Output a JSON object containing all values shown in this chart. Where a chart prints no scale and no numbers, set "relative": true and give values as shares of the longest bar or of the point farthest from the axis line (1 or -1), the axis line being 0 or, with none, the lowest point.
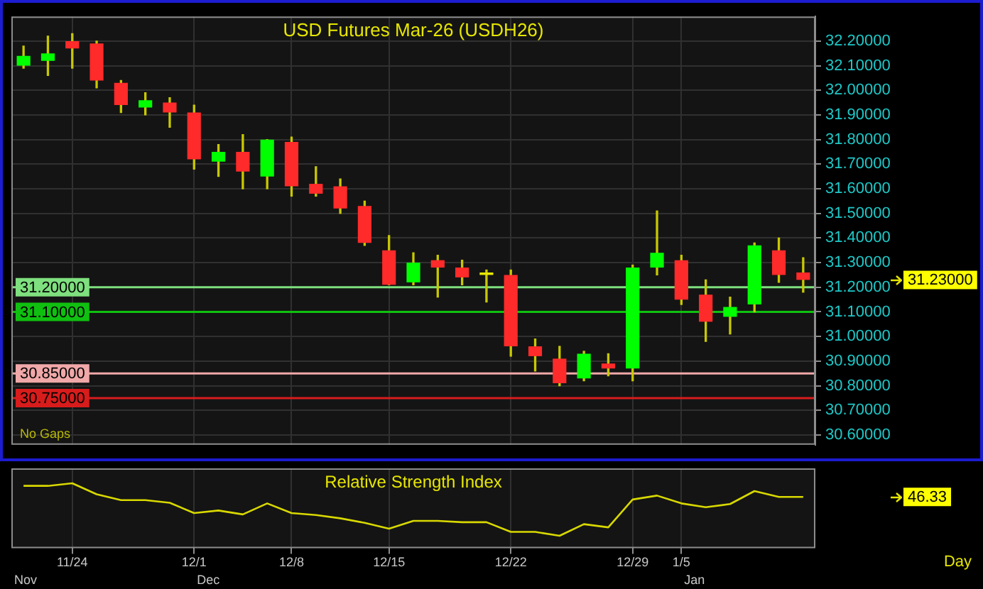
{
  "chart_data": [
    {
      "type": "candlestick",
      "title": "USD Futures Mar-26 (USDH26)",
      "categories": [
        null,
        null,
        null,
        null,
        null,
        null,
        null,
        null,
        null,
        null,
        null,
        null,
        null,
        null,
        null,
        null,
        null,
        null,
        null,
        null,
        null,
        null,
        null,
        null,
        null,
        null,
        null,
        null,
        null,
        null,
        null,
        null,
        null
      ],
      "ohlc": [
        [
          32.1,
          32.18,
          32.09,
          32.14
        ],
        [
          32.12,
          32.22,
          32.06,
          32.15
        ],
        [
          32.2,
          32.23,
          32.09,
          32.17
        ],
        [
          32.19,
          32.2,
          32.01,
          32.04
        ],
        [
          32.03,
          32.04,
          31.91,
          31.94
        ],
        [
          31.93,
          31.99,
          31.9,
          31.96
        ],
        [
          31.95,
          31.97,
          31.85,
          31.91
        ],
        [
          31.91,
          31.94,
          31.68,
          31.72
        ],
        [
          31.71,
          31.78,
          31.65,
          31.75
        ],
        [
          31.75,
          31.82,
          31.6,
          31.67
        ],
        [
          31.65,
          31.8,
          31.6,
          31.8
        ],
        [
          31.79,
          31.81,
          31.57,
          31.61
        ],
        [
          31.62,
          31.69,
          31.57,
          31.58
        ],
        [
          31.61,
          31.64,
          31.5,
          31.52
        ],
        [
          31.53,
          31.55,
          31.37,
          31.38
        ],
        [
          31.35,
          31.41,
          31.21,
          31.21
        ],
        [
          31.22,
          31.34,
          31.21,
          31.3
        ],
        [
          31.31,
          31.33,
          31.16,
          31.28
        ],
        [
          31.28,
          31.31,
          31.21,
          31.24
        ],
        [
          31.26,
          31.27,
          31.14,
          31.25
        ],
        [
          31.25,
          31.27,
          30.92,
          30.96
        ],
        [
          30.96,
          30.99,
          30.86,
          30.92
        ],
        [
          30.91,
          30.96,
          30.8,
          30.81
        ],
        [
          30.83,
          30.94,
          30.82,
          30.93
        ],
        [
          30.89,
          30.93,
          30.84,
          30.87
        ],
        [
          30.87,
          31.29,
          30.82,
          31.28
        ],
        [
          31.28,
          31.51,
          31.25,
          31.34
        ],
        [
          31.31,
          31.33,
          31.13,
          31.15
        ],
        [
          31.17,
          31.23,
          30.98,
          31.06
        ],
        [
          31.08,
          31.16,
          31.01,
          31.12
        ],
        [
          31.13,
          31.38,
          31.1,
          31.37
        ],
        [
          31.35,
          31.4,
          31.22,
          31.25
        ],
        [
          31.26,
          31.32,
          31.18,
          31.23
        ]
      ],
      "colors": [
        "#00ff00",
        "#00ff00",
        "#ff2a2a",
        "#ff2a2a",
        "#ff2a2a",
        "#00ff00",
        "#ff2a2a",
        "#ff2a2a",
        "#00ff00",
        "#ff2a2a",
        "#00ff00",
        "#ff2a2a",
        "#ff2a2a",
        "#ff2a2a",
        "#ff2a2a",
        "#ff2a2a",
        "#00ff00",
        "#ff2a2a",
        "#ff2a2a",
        "#e8e800",
        "#ff2a2a",
        "#ff2a2a",
        "#ff2a2a",
        "#00ff00",
        "#ff2a2a",
        "#00ff00",
        "#00ff00",
        "#ff2a2a",
        "#ff2a2a",
        "#00ff00",
        "#00ff00",
        "#ff2a2a",
        "#ff2a2a"
      ],
      "ylim": [
        30.56,
        32.3
      ],
      "yticks": [
        {
          "value": 30.6,
          "label": "30.60000"
        },
        {
          "value": 30.7,
          "label": "30.70000"
        },
        {
          "value": 30.8,
          "label": "30.80000"
        },
        {
          "value": 30.9,
          "label": "30.90000"
        },
        {
          "value": 31.0,
          "label": "31.00000"
        },
        {
          "value": 31.1,
          "label": "31.10000"
        },
        {
          "value": 31.2,
          "label": "31.20000"
        },
        {
          "value": 31.3,
          "label": "31.30000"
        },
        {
          "value": 31.4,
          "label": "31.40000"
        },
        {
          "value": 31.5,
          "label": "31.50000"
        },
        {
          "value": 31.6,
          "label": "31.60000"
        },
        {
          "value": 31.7,
          "label": "31.70000"
        },
        {
          "value": 31.8,
          "label": "31.80000"
        },
        {
          "value": 31.9,
          "label": "31.90000"
        },
        {
          "value": 32.0,
          "label": "32.00000"
        },
        {
          "value": 32.1,
          "label": "32.10000"
        },
        {
          "value": 32.2,
          "label": "32.20000"
        }
      ],
      "grid": true,
      "tick_labels": "y",
      "ref_lines": [
        {
          "axis": "y",
          "value": 31.2,
          "label": "31.20000",
          "color": "#7ee07e"
        },
        {
          "axis": "y",
          "value": 31.1,
          "label": "31.10000",
          "color": "#10c010"
        },
        {
          "axis": "y",
          "value": 30.85,
          "label": "30.85000",
          "color": "#f0a8a8"
        },
        {
          "axis": "y",
          "value": 30.75,
          "label": "30.75000",
          "color": "#d81c1c"
        }
      ],
      "annotations": [
        "No Gaps",
        "31.23000"
      ]
    },
    {
      "type": "line",
      "title": "Relative Strength Index",
      "categories": [
        null,
        null,
        "11/24",
        null,
        null,
        null,
        null,
        "12/1",
        null,
        null,
        null,
        "12/8",
        null,
        null,
        null,
        "12/15",
        null,
        null,
        null,
        null,
        "12/22",
        null,
        null,
        null,
        null,
        "12/29",
        null,
        "1/5",
        null,
        null,
        null,
        null,
        null
      ],
      "series": [
        {
          "color": "#d8d800",
          "values": [
            0.96,
            0.96,
            1,
            0.83,
            0.74,
            0.74,
            0.7,
            0.54,
            0.58,
            0.52,
            0.69,
            0.54,
            0.51,
            0.46,
            0.39,
            0.3,
            0.42,
            0.42,
            0.4,
            0.4,
            0.25,
            0.25,
            0.19,
            0.37,
            0.32,
            0.75,
            0.81,
            0.69,
            0.63,
            0.68,
            0.88,
            0.79,
            0.79
          ]
        }
      ],
      "relative": true,
      "grid": "x",
      "marker": "none",
      "annotations": [
        "Nov",
        "Dec",
        "Jan",
        "Day",
        "46.33"
      ]
    }
  ]
}
